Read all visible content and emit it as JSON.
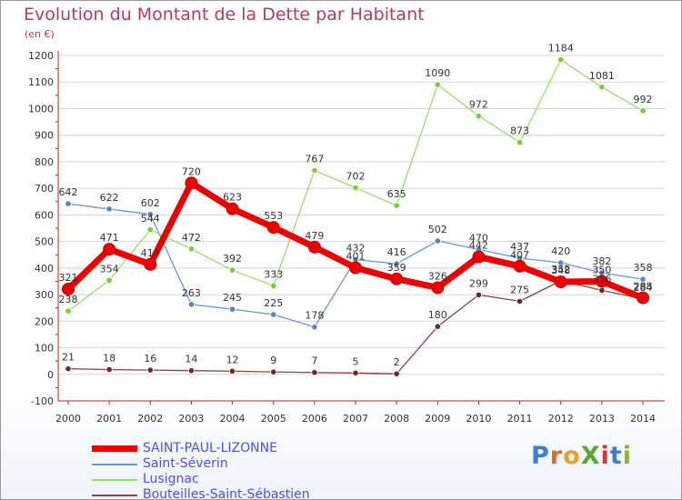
{
  "title": "Evolution du Montant de la Dette par Habitant",
  "subtitle": "(en €)",
  "brand": "ProXiti",
  "colors": {
    "title": "#b5386b",
    "legend_text": "#4d4dff",
    "axis_text": "#333333",
    "grid": "#d4d4d4"
  },
  "chart_data": {
    "type": "line",
    "title": "Evolution du Montant de la Dette par Habitant",
    "subtitle": "(en €)",
    "xlabel": "",
    "ylabel": "",
    "ylim": [
      -100,
      1200
    ],
    "y_ticks": [
      -100,
      0,
      100,
      200,
      300,
      400,
      500,
      600,
      700,
      800,
      900,
      1000,
      1100,
      1200
    ],
    "categories": [
      "2000",
      "2001",
      "2002",
      "2003",
      "2004",
      "2005",
      "2006",
      "2007",
      "2008",
      "2009",
      "2010",
      "2011",
      "2012",
      "2013",
      "2014"
    ],
    "grid": "horizontal",
    "legend_position": "bottom-left",
    "series": [
      {
        "name": "SAINT-PAUL-LIZONNE",
        "color": "#ee0000",
        "marker_color": "#ee0000",
        "emphasis": true,
        "values": [
          321,
          471,
          414,
          720,
          623,
          553,
          479,
          401,
          359,
          326,
          442,
          407,
          348,
          350,
          288
        ]
      },
      {
        "name": "Saint-Séverin",
        "color": "#6699cc",
        "marker_color": "#4f86c6",
        "values": [
          642,
          622,
          602,
          263,
          245,
          225,
          178,
          432,
          416,
          502,
          470,
          437,
          420,
          382,
          358
        ]
      },
      {
        "name": "Lusignac",
        "color": "#99dd66",
        "marker_color": "#77cc33",
        "values": [
          238,
          354,
          544,
          472,
          392,
          333,
          767,
          702,
          635,
          1090,
          972,
          873,
          1184,
          1081,
          992
        ]
      },
      {
        "name": "Bouteilles-Saint-Sébastien",
        "color": "#884444",
        "marker_color": "#772222",
        "values": [
          21,
          18,
          16,
          14,
          12,
          9,
          7,
          5,
          2,
          180,
          299,
          275,
          352,
          316,
          284
        ]
      }
    ]
  }
}
